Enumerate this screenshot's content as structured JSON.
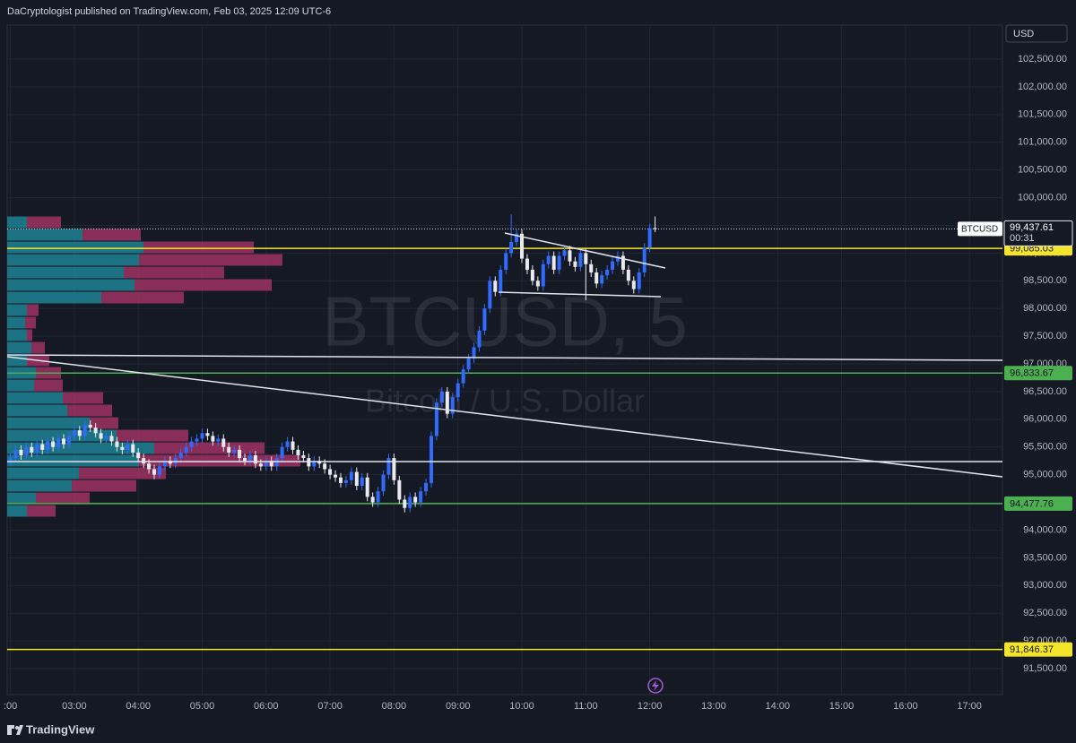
{
  "chart_data": {
    "type": "candlestick",
    "header": "DaCryptologist published on TradingView.com, Feb 03, 2025 12:09 UTC-6",
    "watermark": "BTCUSD, 5",
    "watermark_subtitle": "Bitcoin / U.S. Dollar",
    "currency": "USD",
    "footer": "TradingView",
    "x": [
      "02:00",
      "02:05",
      "02:10",
      "02:15",
      "02:20",
      "02:25",
      "02:30",
      "02:35",
      "02:40",
      "02:45",
      "02:50",
      "02:55",
      "03:00",
      "03:05",
      "03:10",
      "03:15",
      "03:20",
      "03:25",
      "03:30",
      "03:35",
      "03:40",
      "03:45",
      "03:50",
      "03:55",
      "04:00",
      "04:05",
      "04:10",
      "04:15",
      "04:20",
      "04:25",
      "04:30",
      "04:35",
      "04:40",
      "04:45",
      "04:50",
      "04:55",
      "05:00",
      "05:05",
      "05:10",
      "05:15",
      "05:20",
      "05:25",
      "05:30",
      "05:35",
      "05:40",
      "05:45",
      "05:50",
      "05:55",
      "06:00",
      "06:05",
      "06:10",
      "06:15",
      "06:20",
      "06:25",
      "06:30",
      "06:35",
      "06:40",
      "06:45",
      "06:50",
      "06:55",
      "07:00",
      "07:05",
      "07:10",
      "07:15",
      "07:20",
      "07:25",
      "07:30",
      "07:35",
      "07:40",
      "07:45",
      "07:50",
      "07:55",
      "08:00",
      "08:05",
      "08:10",
      "08:15",
      "08:20",
      "08:25",
      "08:30",
      "08:35",
      "08:40",
      "08:45",
      "08:50",
      "08:55",
      "09:00",
      "09:05",
      "09:10",
      "09:15",
      "09:20",
      "09:25",
      "09:30",
      "09:35",
      "09:40",
      "09:45",
      "09:50",
      "09:55",
      "10:00",
      "10:05",
      "10:10",
      "10:15",
      "10:20",
      "10:25",
      "10:30",
      "10:35",
      "10:40",
      "10:45",
      "10:50",
      "10:55",
      "11:00",
      "11:05",
      "11:10",
      "11:15",
      "11:20",
      "11:25",
      "11:30",
      "11:35",
      "11:40",
      "11:45",
      "11:50",
      "11:55",
      "12:00",
      "12:05"
    ],
    "open": [
      95250,
      95300,
      95450,
      95350,
      95500,
      95400,
      95550,
      95450,
      95600,
      95500,
      95650,
      95550,
      95700,
      95800,
      95700,
      95900,
      95850,
      95750,
      95650,
      95700,
      95600,
      95500,
      95450,
      95550,
      95400,
      95300,
      95200,
      95100,
      95000,
      95150,
      95250,
      95200,
      95300,
      95400,
      95500,
      95600,
      95650,
      95750,
      95700,
      95600,
      95650,
      95500,
      95400,
      95450,
      95300,
      95250,
      95350,
      95200,
      95150,
      95250,
      95150,
      95300,
      95500,
      95600,
      95450,
      95350,
      95300,
      95150,
      95250,
      95200,
      95100,
      95000,
      94950,
      94850,
      94900,
      95050,
      94800,
      94950,
      94600,
      94500,
      94700,
      95000,
      95300,
      94900,
      94550,
      94400,
      94600,
      94500,
      94700,
      94850,
      95700,
      96300,
      96500,
      96100,
      96400,
      96650,
      96900,
      97100,
      97300,
      97600,
      98000,
      98500,
      98300,
      98700,
      99000,
      99200,
      99350,
      98900,
      98700,
      98500,
      98400,
      98800,
      98950,
      98700,
      98950,
      99050,
      98850,
      98750,
      99000,
      98800,
      98650,
      98450,
      98600,
      98700,
      98850,
      98950,
      98700,
      98500,
      98350,
      98650,
      99100,
      99450
    ],
    "high": [
      95380,
      95530,
      95530,
      95580,
      95580,
      95630,
      95630,
      95680,
      95680,
      95730,
      95730,
      95780,
      95880,
      95880,
      95980,
      95980,
      95930,
      95830,
      95780,
      95780,
      95680,
      95580,
      95630,
      95630,
      95480,
      95380,
      95280,
      95180,
      95230,
      95330,
      95330,
      95380,
      95480,
      95580,
      95680,
      95730,
      95830,
      95830,
      95780,
      95730,
      95730,
      95580,
      95530,
      95530,
      95380,
      95430,
      95430,
      95280,
      95330,
      95330,
      95380,
      95580,
      95680,
      95680,
      95530,
      95430,
      95380,
      95330,
      95330,
      95280,
      95180,
      95080,
      95030,
      94980,
      95130,
      95130,
      95030,
      95030,
      94680,
      94780,
      95080,
      95380,
      95380,
      94980,
      94630,
      94680,
      94680,
      94780,
      94930,
      95780,
      96380,
      96580,
      96580,
      96480,
      96730,
      96980,
      97180,
      97380,
      97680,
      98080,
      98580,
      98580,
      98780,
      99080,
      99700,
      99430,
      99430,
      98980,
      98780,
      98580,
      98880,
      99030,
      99030,
      99030,
      99130,
      99130,
      98930,
      99080,
      99080,
      98880,
      98730,
      98680,
      98780,
      98930,
      99030,
      99030,
      98780,
      98580,
      98730,
      99180,
      99530,
      99660
    ],
    "low": [
      95170,
      95220,
      95270,
      95270,
      95320,
      95320,
      95370,
      95370,
      95420,
      95420,
      95470,
      95470,
      95620,
      95620,
      95620,
      95770,
      95670,
      95570,
      95570,
      95520,
      95420,
      95370,
      95370,
      95320,
      95220,
      95120,
      95020,
      94920,
      94920,
      95070,
      95120,
      95120,
      95220,
      95320,
      95420,
      95520,
      95570,
      95620,
      95520,
      95520,
      95420,
      95320,
      95320,
      95220,
      95170,
      95170,
      95120,
      95070,
      95070,
      95070,
      95070,
      95220,
      95420,
      95370,
      95270,
      95220,
      95070,
      95070,
      95120,
      95020,
      94920,
      94870,
      94770,
      94770,
      94820,
      94720,
      94720,
      94520,
      94420,
      94420,
      94620,
      94920,
      94820,
      94470,
      94320,
      94320,
      94420,
      94420,
      94620,
      94770,
      95620,
      96220,
      96020,
      96020,
      96320,
      96570,
      96820,
      97020,
      97220,
      97520,
      97920,
      98220,
      98220,
      98620,
      98920,
      99120,
      98820,
      98620,
      98420,
      98320,
      98320,
      98720,
      98620,
      98620,
      98870,
      98770,
      98670,
      98670,
      98150,
      98570,
      98370,
      98370,
      98520,
      98620,
      98770,
      98620,
      98420,
      98270,
      98270,
      98570,
      99020,
      99380
    ],
    "close": [
      95300,
      95450,
      95350,
      95500,
      95400,
      95550,
      95450,
      95600,
      95500,
      95650,
      95550,
      95700,
      95800,
      95700,
      95900,
      95850,
      95750,
      95650,
      95700,
      95600,
      95500,
      95450,
      95550,
      95400,
      95300,
      95200,
      95100,
      95000,
      95150,
      95250,
      95200,
      95300,
      95400,
      95500,
      95600,
      95650,
      95750,
      95700,
      95600,
      95650,
      95500,
      95400,
      95450,
      95300,
      95250,
      95350,
      95200,
      95150,
      95250,
      95150,
      95300,
      95500,
      95600,
      95450,
      95350,
      95300,
      95150,
      95250,
      95200,
      95100,
      95000,
      94950,
      94850,
      94900,
      95050,
      94800,
      94950,
      94600,
      94500,
      94700,
      95000,
      95300,
      94900,
      94550,
      94400,
      94600,
      94500,
      94700,
      94850,
      95700,
      96300,
      96500,
      96100,
      96400,
      96650,
      96900,
      97100,
      97300,
      97600,
      98000,
      98500,
      98300,
      98700,
      99000,
      99200,
      99350,
      98900,
      98700,
      98500,
      98400,
      98800,
      98950,
      98700,
      98950,
      99050,
      98850,
      98750,
      99000,
      98800,
      98650,
      98450,
      98600,
      98700,
      98850,
      98950,
      98700,
      98500,
      98350,
      98650,
      99100,
      99450,
      99437.61
    ],
    "up_color": "#2f6bff",
    "down_color": "#e8eaf0",
    "xlim": [
      "01:57",
      "17:31"
    ],
    "xticks": [
      {
        "value": "02:00",
        "label": ":00"
      },
      "03:00",
      "04:00",
      "05:00",
      "06:00",
      "07:00",
      "08:00",
      "09:00",
      "10:00",
      "11:00",
      "12:00",
      "13:00",
      "14:00",
      "15:00",
      "16:00",
      "17:00"
    ],
    "ylim": [
      91031,
      103115
    ],
    "yticks": [
      {
        "value": 91500,
        "label": "91,500.00"
      },
      {
        "value": 92000,
        "label": "92,000.00"
      },
      {
        "value": 92500,
        "label": "92,500.00"
      },
      {
        "value": 93000,
        "label": "93,000.00"
      },
      {
        "value": 93500,
        "label": "93,500.00"
      },
      {
        "value": 94000,
        "label": "94,000.00"
      },
      {
        "value": 94500,
        "label": "94,500.00"
      },
      {
        "value": 95000,
        "label": "95,000.00"
      },
      {
        "value": 95500,
        "label": "95,500.00"
      },
      {
        "value": 96000,
        "label": "96,000.00"
      },
      {
        "value": 96500,
        "label": "96,500.00"
      },
      {
        "value": 97000,
        "label": "97,000.00"
      },
      {
        "value": 97500,
        "label": "97,500.00"
      },
      {
        "value": 98000,
        "label": "98,000.00"
      },
      {
        "value": 98500,
        "label": "98,500.00"
      },
      {
        "value": 99000,
        "label": "99,000.00"
      },
      {
        "value": 99500,
        "label": "99,500.00"
      },
      {
        "value": 100000,
        "label": "100,000.00"
      },
      {
        "value": 100500,
        "label": "100,500.00"
      },
      {
        "value": 101000,
        "label": "101,000.00"
      },
      {
        "value": 101500,
        "label": "101,500.00"
      },
      {
        "value": 102000,
        "label": "102,000.00"
      },
      {
        "value": 102500,
        "label": "102,500.00"
      }
    ],
    "grid": true,
    "price_lines": [
      {
        "value": 99085.03,
        "label": "99,085.03",
        "color": "#f5e52a"
      },
      {
        "value": 96833.67,
        "label": "96,833.67",
        "color": "#4caf50"
      },
      {
        "value": 94477.76,
        "label": "94,477.76",
        "color": "#4caf50"
      },
      {
        "value": 91846.37,
        "label": "91,846.37",
        "color": "#f5e52a"
      }
    ],
    "last_price": {
      "symbol": "BTCUSD",
      "label": "99,437.61",
      "countdown": "00:31"
    },
    "volume_profile": {
      "levels": [
        99556,
        99330,
        99103,
        98877,
        98650,
        98424,
        98197,
        97971,
        97744,
        97518,
        97291,
        97065,
        96838,
        96612,
        96385,
        96159,
        95932,
        95706,
        95479,
        95253,
        95026,
        94800,
        94573,
        94347
      ],
      "buy": [
        22,
        84,
        152,
        147,
        130,
        142,
        105,
        22,
        20,
        22,
        27,
        22,
        32,
        30,
        62,
        67,
        92,
        122,
        164,
        147,
        80,
        72,
        32,
        22
      ],
      "sell": [
        38,
        65,
        123,
        160,
        112,
        153,
        92,
        13,
        12,
        6,
        15,
        25,
        28,
        32,
        45,
        50,
        32,
        80,
        123,
        180,
        97,
        72,
        60,
        32
      ],
      "buy_color": "#1f8fa3",
      "sell_color": "#b0356a"
    }
  }
}
